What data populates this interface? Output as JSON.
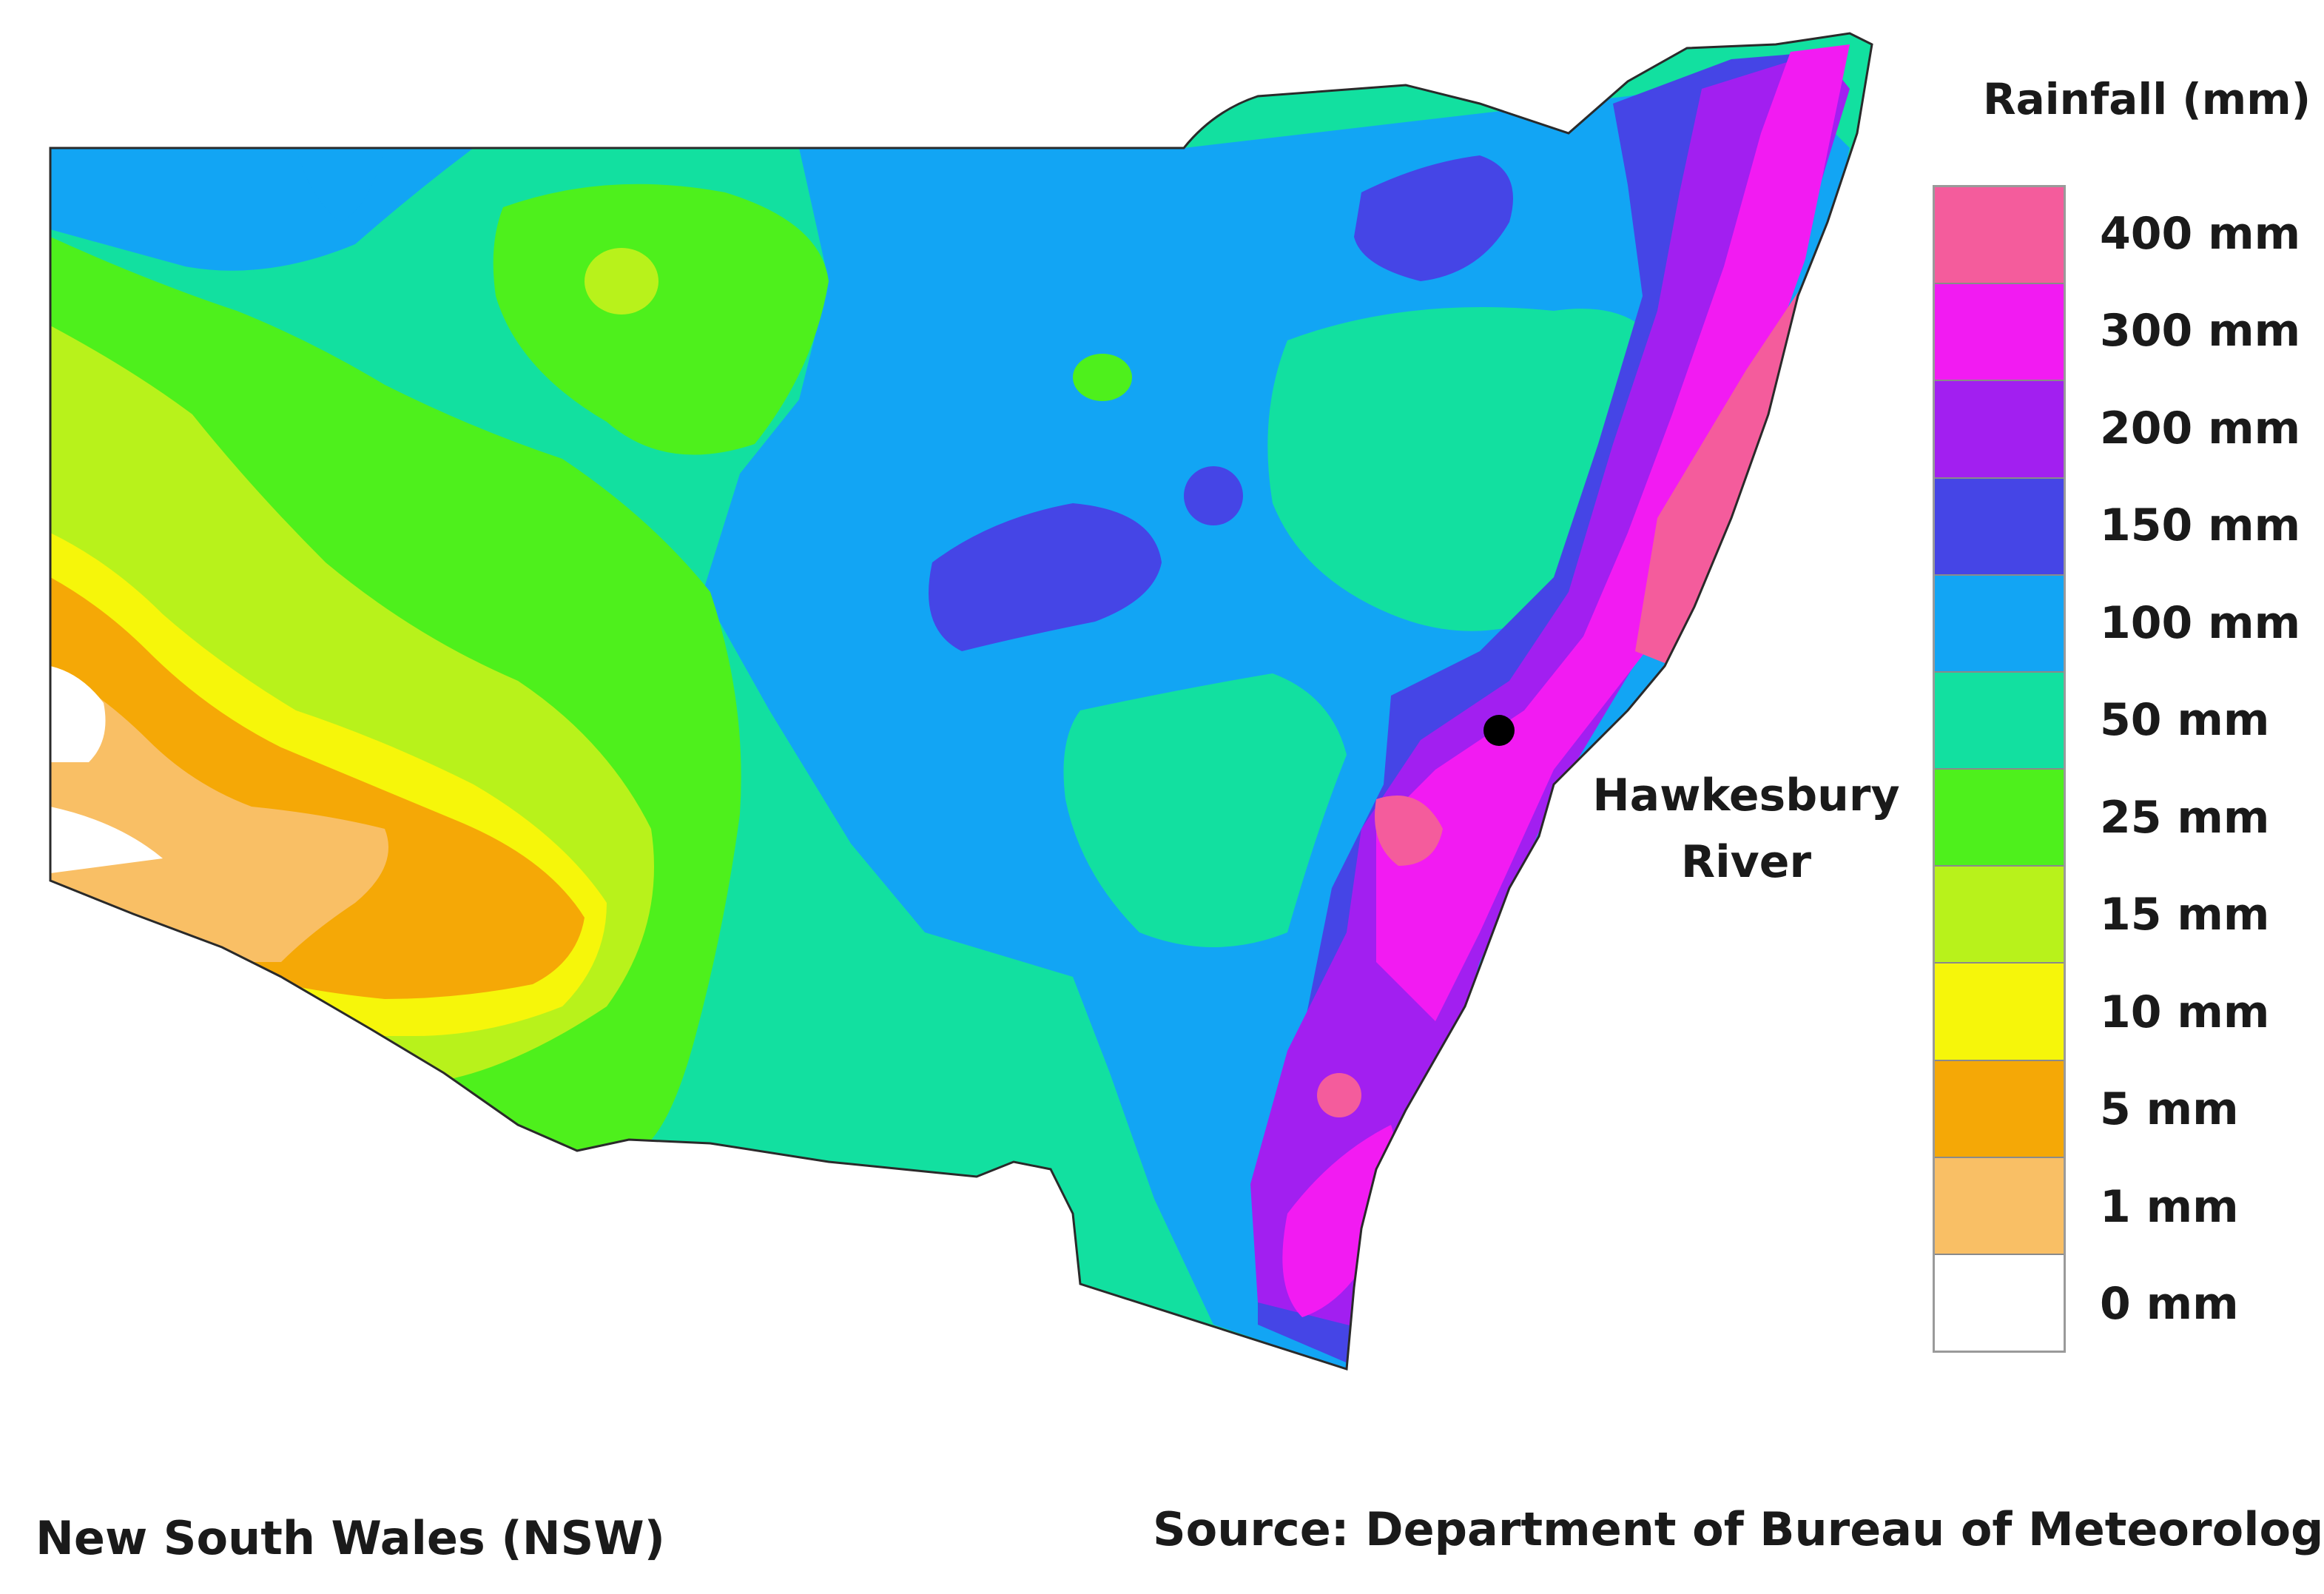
{
  "map": {
    "region_label": "New South Wales (NSW)",
    "source_label": "Source: Department of Bureau of Meteorology",
    "marker": {
      "name": "Hawkesbury River",
      "label_lines": [
        "Hawkesbury",
        "River"
      ]
    }
  },
  "legend": {
    "title": "Rainfall (mm)",
    "items": [
      {
        "label": "400 mm",
        "color": "#f45c9c"
      },
      {
        "label": "300 mm",
        "color": "#f21bf2"
      },
      {
        "label": "200 mm",
        "color": "#a21ff0"
      },
      {
        "label": "150 mm",
        "color": "#4545e6"
      },
      {
        "label": "100 mm",
        "color": "#12a5f4"
      },
      {
        "label": "50 mm",
        "color": "#12e0a0"
      },
      {
        "label": "25 mm",
        "color": "#4ef01c"
      },
      {
        "label": "15 mm",
        "color": "#b8f21b"
      },
      {
        "label": "10 mm",
        "color": "#f6f60a"
      },
      {
        "label": "5 mm",
        "color": "#f5a806"
      },
      {
        "label": "1 mm",
        "color": "#f9bf65"
      },
      {
        "label": "0 mm",
        "color": "#ffffff"
      }
    ]
  }
}
